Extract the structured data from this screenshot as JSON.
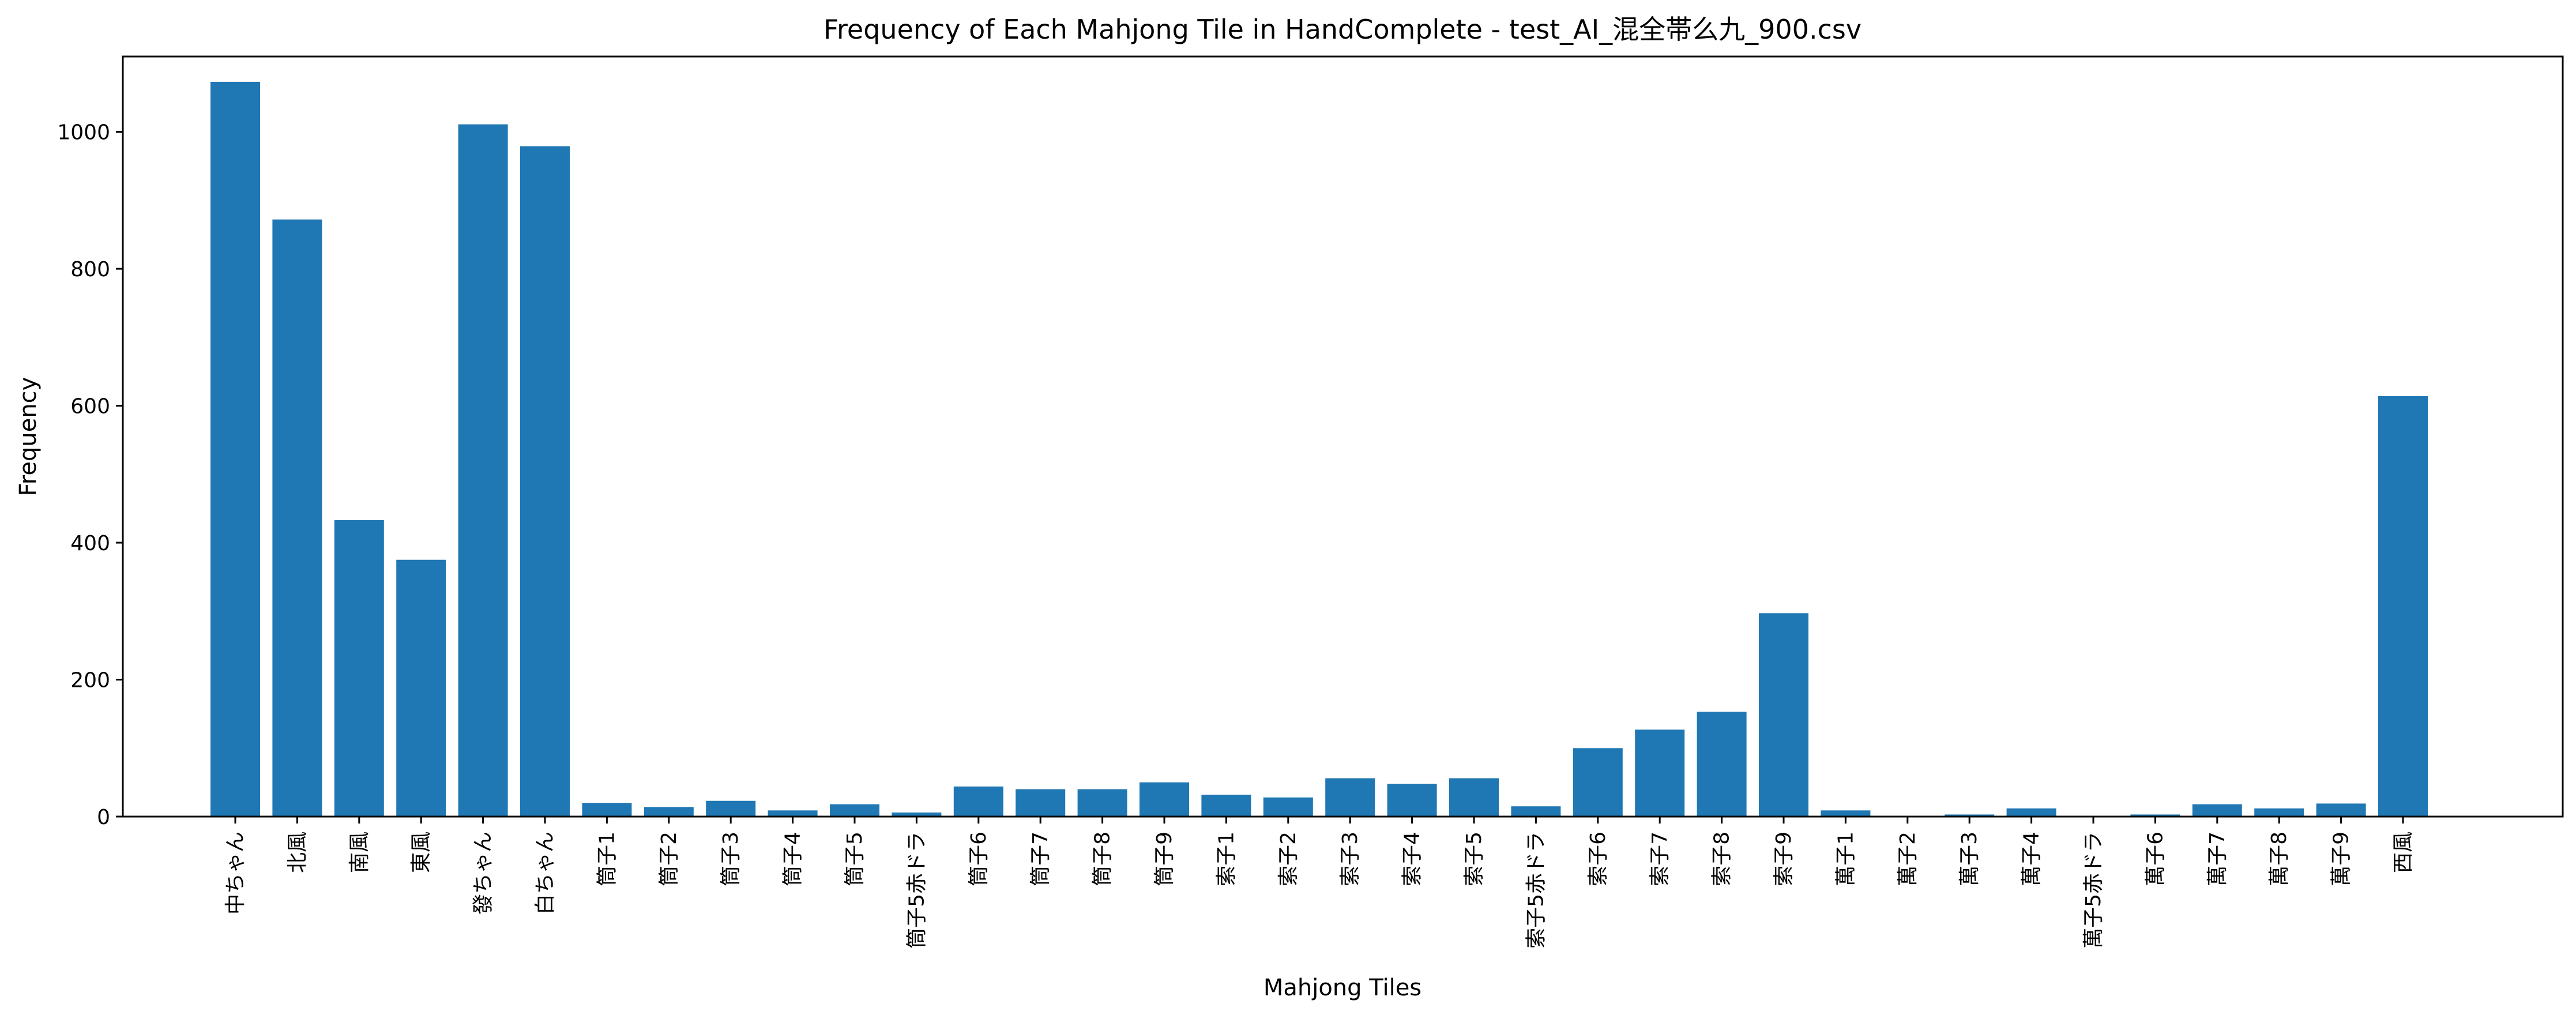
{
  "chart_data": {
    "type": "bar",
    "title": "Frequency of Each Mahjong Tile in HandComplete - test_AI_混全帯么九_900.csv",
    "xlabel": "Mahjong Tiles",
    "ylabel": "Frequency",
    "ylim": [
      0,
      1110
    ],
    "yticks": [
      0,
      200,
      400,
      600,
      800,
      1000
    ],
    "grid": false,
    "bar_color": "#1f77b4",
    "categories": [
      "中ちゃん",
      "北風",
      "南風",
      "東風",
      "發ちゃん",
      "白ちゃん",
      "筒子1",
      "筒子2",
      "筒子3",
      "筒子4",
      "筒子5",
      "筒子5赤ドラ",
      "筒子6",
      "筒子7",
      "筒子8",
      "筒子9",
      "索子1",
      "索子2",
      "索子3",
      "索子4",
      "索子5",
      "索子5赤ドラ",
      "索子6",
      "索子7",
      "索子8",
      "索子9",
      "萬子1",
      "萬子2",
      "萬子3",
      "萬子4",
      "萬子5赤ドラ",
      "萬子6",
      "萬子7",
      "萬子8",
      "萬子9",
      "西風"
    ],
    "values": [
      1073,
      872,
      433,
      375,
      1011,
      979,
      20,
      14,
      23,
      9,
      18,
      6,
      44,
      40,
      40,
      50,
      32,
      28,
      56,
      48,
      56,
      15,
      100,
      127,
      153,
      297,
      9,
      1,
      3,
      12,
      1,
      3,
      18,
      12,
      19,
      614
    ]
  }
}
